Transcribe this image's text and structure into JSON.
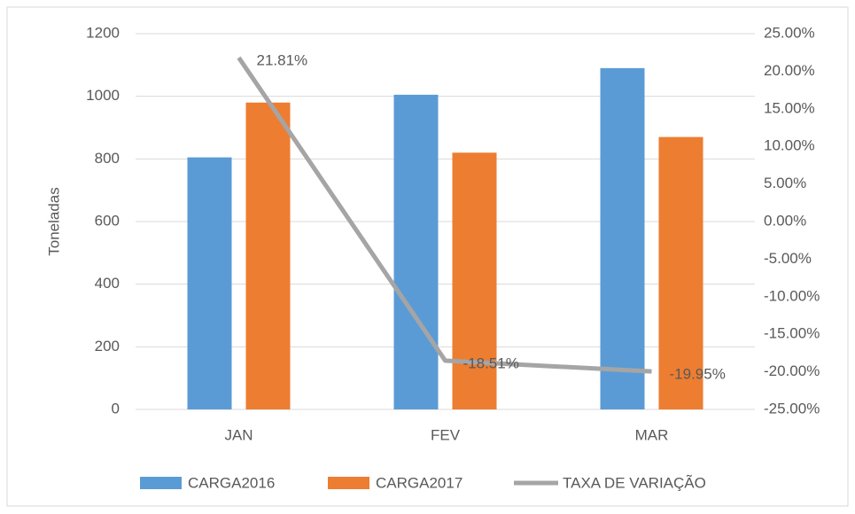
{
  "chart_data": {
    "type": "bar",
    "y_label": "Toneladas",
    "categories": [
      "JAN",
      "FEV",
      "MAR"
    ],
    "series": [
      {
        "name": "CARGA2016",
        "color": "#5b9bd5",
        "values": [
          805,
          1005,
          1090
        ]
      },
      {
        "name": "CARGA2017",
        "color": "#ed7d31",
        "values": [
          980,
          820,
          870
        ]
      },
      {
        "name": "TAXA DE VARIAÇÃO",
        "color": "#a5a5a5",
        "axis": "y2",
        "type": "line",
        "values": [
          21.81,
          -18.51,
          -19.95
        ],
        "value_labels": [
          "21.81%",
          "-18.51%",
          "-19.95%"
        ]
      }
    ],
    "ylim": [
      0,
      1200
    ],
    "yticks": [
      0,
      200,
      400,
      600,
      800,
      1000,
      1200
    ],
    "y2lim": [
      -25,
      25
    ],
    "y2ticks": [
      {
        "value": -25,
        "label": "-25.00%"
      },
      {
        "value": -20,
        "label": "-20.00%"
      },
      {
        "value": -15,
        "label": "-15.00%"
      },
      {
        "value": -10,
        "label": "-10.00%"
      },
      {
        "value": -5,
        "label": "-5.00%"
      },
      {
        "value": 0,
        "label": "0.00%"
      },
      {
        "value": 5,
        "label": "5.00%"
      },
      {
        "value": 10,
        "label": "10.00%"
      },
      {
        "value": 15,
        "label": "15.00%"
      },
      {
        "value": 20,
        "label": "20.00%"
      },
      {
        "value": 25,
        "label": "25.00%"
      }
    ],
    "grid": true,
    "legend": "bottom"
  }
}
